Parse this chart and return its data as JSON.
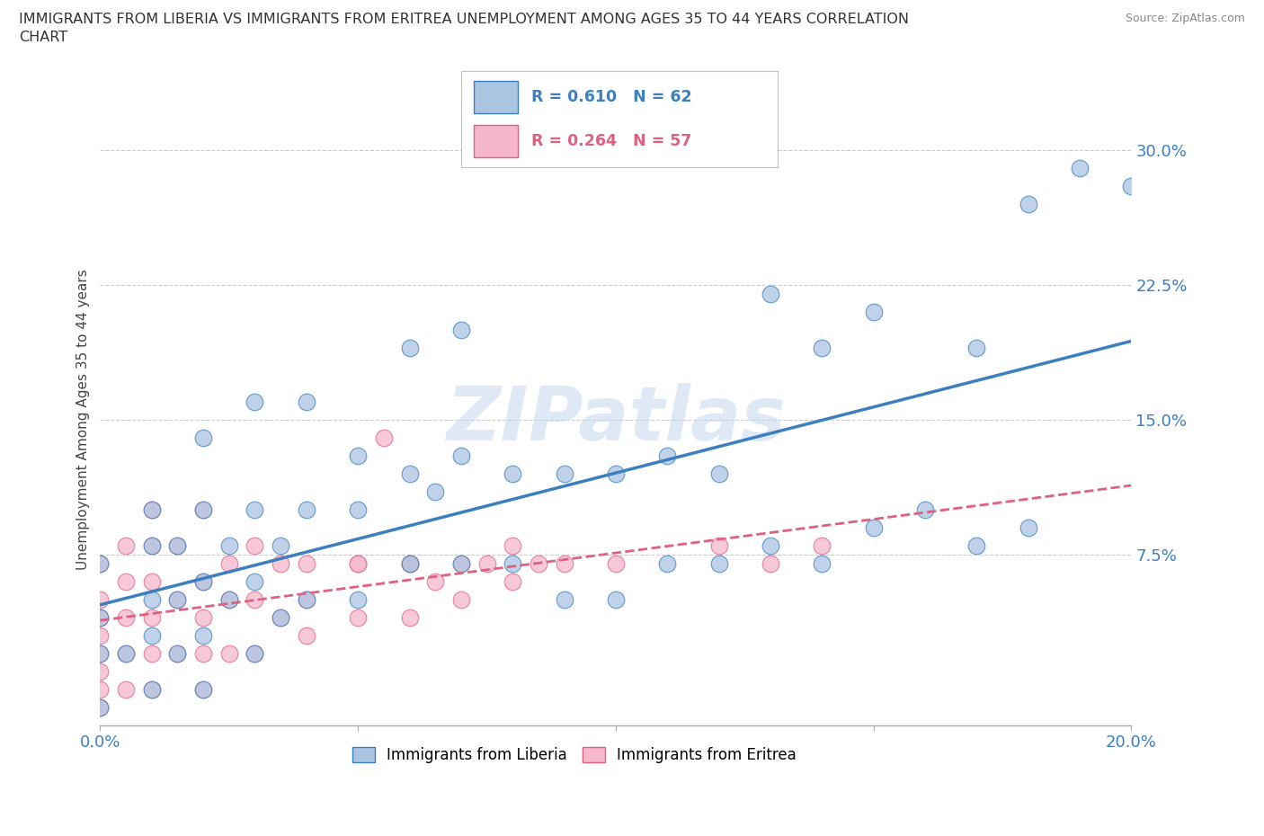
{
  "title": "IMMIGRANTS FROM LIBERIA VS IMMIGRANTS FROM ERITREA UNEMPLOYMENT AMONG AGES 35 TO 44 YEARS CORRELATION\nCHART",
  "source": "Source: ZipAtlas.com",
  "ylabel": "Unemployment Among Ages 35 to 44 years",
  "xlim": [
    0.0,
    0.2
  ],
  "ylim": [
    -0.02,
    0.32
  ],
  "yticks": [
    0.0,
    0.075,
    0.15,
    0.225,
    0.3
  ],
  "ytick_labels": [
    "",
    "7.5%",
    "15.0%",
    "22.5%",
    "30.0%"
  ],
  "xticks": [
    0.0,
    0.05,
    0.1,
    0.15,
    0.2
  ],
  "xtick_labels": [
    "0.0%",
    "",
    "",
    "",
    "20.0%"
  ],
  "liberia_color": "#aac4e2",
  "eritrea_color": "#f5b8cb",
  "liberia_line_color": "#3c7fc0",
  "eritrea_line_color": "#e06080",
  "R_liberia": 0.61,
  "N_liberia": 62,
  "R_eritrea": 0.264,
  "N_eritrea": 57,
  "watermark": "ZIPatlas",
  "liberia_scatter_x": [
    0.0,
    0.0,
    0.0,
    0.0,
    0.005,
    0.01,
    0.01,
    0.01,
    0.01,
    0.01,
    0.015,
    0.015,
    0.015,
    0.02,
    0.02,
    0.02,
    0.02,
    0.025,
    0.025,
    0.03,
    0.03,
    0.03,
    0.035,
    0.035,
    0.04,
    0.04,
    0.05,
    0.05,
    0.06,
    0.06,
    0.065,
    0.07,
    0.07,
    0.08,
    0.08,
    0.09,
    0.09,
    0.1,
    0.1,
    0.11,
    0.11,
    0.12,
    0.12,
    0.13,
    0.13,
    0.14,
    0.14,
    0.15,
    0.15,
    0.16,
    0.17,
    0.17,
    0.18,
    0.18,
    0.19,
    0.2,
    0.02,
    0.03,
    0.04,
    0.05,
    0.06,
    0.07
  ],
  "liberia_scatter_y": [
    0.02,
    0.04,
    0.07,
    -0.01,
    0.02,
    0.0,
    0.03,
    0.05,
    0.08,
    0.1,
    0.02,
    0.05,
    0.08,
    0.0,
    0.03,
    0.06,
    0.1,
    0.05,
    0.08,
    0.02,
    0.06,
    0.1,
    0.04,
    0.08,
    0.05,
    0.1,
    0.05,
    0.1,
    0.07,
    0.12,
    0.11,
    0.07,
    0.13,
    0.07,
    0.12,
    0.05,
    0.12,
    0.05,
    0.12,
    0.07,
    0.13,
    0.07,
    0.12,
    0.08,
    0.22,
    0.07,
    0.19,
    0.09,
    0.21,
    0.1,
    0.08,
    0.19,
    0.09,
    0.27,
    0.29,
    0.28,
    0.14,
    0.16,
    0.16,
    0.13,
    0.19,
    0.2
  ],
  "eritrea_scatter_x": [
    0.0,
    0.0,
    0.0,
    0.0,
    0.0,
    0.0,
    0.0,
    0.0,
    0.005,
    0.005,
    0.005,
    0.005,
    0.005,
    0.01,
    0.01,
    0.01,
    0.01,
    0.01,
    0.01,
    0.015,
    0.015,
    0.015,
    0.02,
    0.02,
    0.02,
    0.02,
    0.02,
    0.025,
    0.025,
    0.025,
    0.03,
    0.03,
    0.03,
    0.035,
    0.035,
    0.04,
    0.04,
    0.04,
    0.05,
    0.05,
    0.055,
    0.06,
    0.06,
    0.065,
    0.07,
    0.07,
    0.075,
    0.08,
    0.08,
    0.085,
    0.09,
    0.1,
    0.12,
    0.13,
    0.14,
    0.05,
    0.06
  ],
  "eritrea_scatter_y": [
    0.0,
    0.01,
    0.02,
    0.03,
    0.04,
    0.05,
    0.07,
    -0.01,
    0.0,
    0.02,
    0.04,
    0.06,
    0.08,
    0.0,
    0.02,
    0.04,
    0.06,
    0.08,
    0.1,
    0.02,
    0.05,
    0.08,
    0.0,
    0.02,
    0.04,
    0.06,
    0.1,
    0.02,
    0.05,
    0.07,
    0.02,
    0.05,
    0.08,
    0.04,
    0.07,
    0.03,
    0.05,
    0.07,
    0.04,
    0.07,
    0.14,
    0.04,
    0.07,
    0.06,
    0.05,
    0.07,
    0.07,
    0.06,
    0.08,
    0.07,
    0.07,
    0.07,
    0.08,
    0.07,
    0.08,
    0.07,
    0.07
  ]
}
